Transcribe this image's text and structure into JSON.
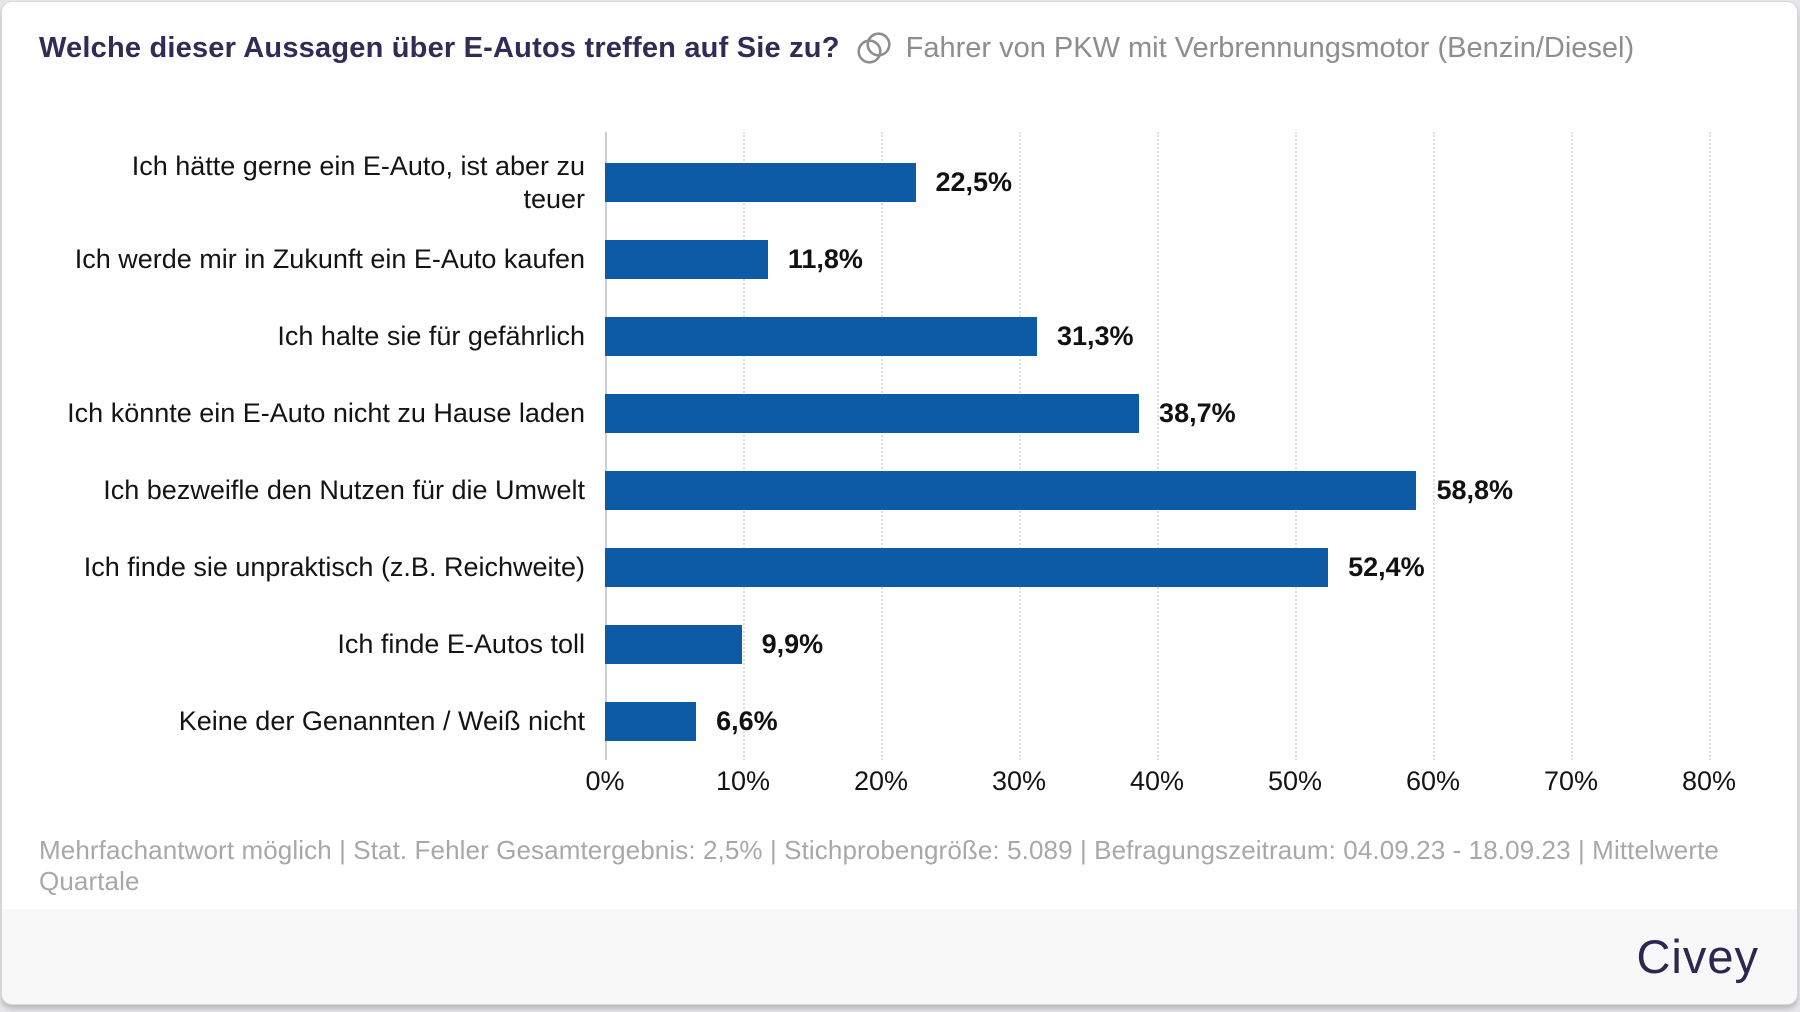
{
  "header": {
    "title": "Welche dieser Aussagen über E-Autos treffen auf Sie zu?",
    "filter_icon": "overlapping-circles-icon",
    "subtitle": "Fahrer von PKW mit Verbrennungsmotor (Benzin/Diesel)"
  },
  "chart_data": {
    "type": "bar",
    "orientation": "horizontal",
    "title": "Welche dieser Aussagen über E-Autos treffen auf Sie zu?",
    "subgroup": "Fahrer von PKW mit Verbrennungsmotor (Benzin/Diesel)",
    "categories": [
      "Ich hätte gerne ein E-Auto, ist aber zu teuer",
      "Ich werde mir in Zukunft ein E-Auto kaufen",
      "Ich halte sie für gefährlich",
      "Ich könnte ein E-Auto nicht zu Hause laden",
      "Ich bezweifle den Nutzen für die Umwelt",
      "Ich finde sie unpraktisch (z.B. Reichweite)",
      "Ich finde E-Autos toll",
      "Keine der Genannten / Weiß nicht"
    ],
    "values": [
      22.5,
      11.8,
      31.3,
      38.7,
      58.8,
      52.4,
      9.9,
      6.6
    ],
    "value_labels": [
      "22,5%",
      "11,8%",
      "31,3%",
      "38,7%",
      "58,8%",
      "52,4%",
      "9,9%",
      "6,6%"
    ],
    "xlabel": "",
    "ylabel": "",
    "xlim": [
      0,
      80
    ],
    "x_ticks": [
      "0%",
      "10%",
      "20%",
      "30%",
      "40%",
      "50%",
      "60%",
      "70%",
      "80%"
    ],
    "grid": "vertical-dotted",
    "legend": "none",
    "bar_color": "#0d5ba6"
  },
  "footer": {
    "note": "Mehrfachantwort möglich | Stat. Fehler Gesamtergebnis: 2,5% | Stichprobengröße: 5.089 | Befragungszeitraum: 04.09.23 - 18.09.23 | Mittelwerte Quartale",
    "brand": "Civey"
  },
  "colors": {
    "bar": "#0d5ba6",
    "title_text": "#332a56",
    "subtitle_text": "#8d8d92",
    "brand_text": "#2e2550",
    "footnote_text": "#a8a8ac",
    "gridline": "#dedee1",
    "axis_line": "#cfcfd3",
    "footer_band_bg": "#f8f8f9"
  }
}
